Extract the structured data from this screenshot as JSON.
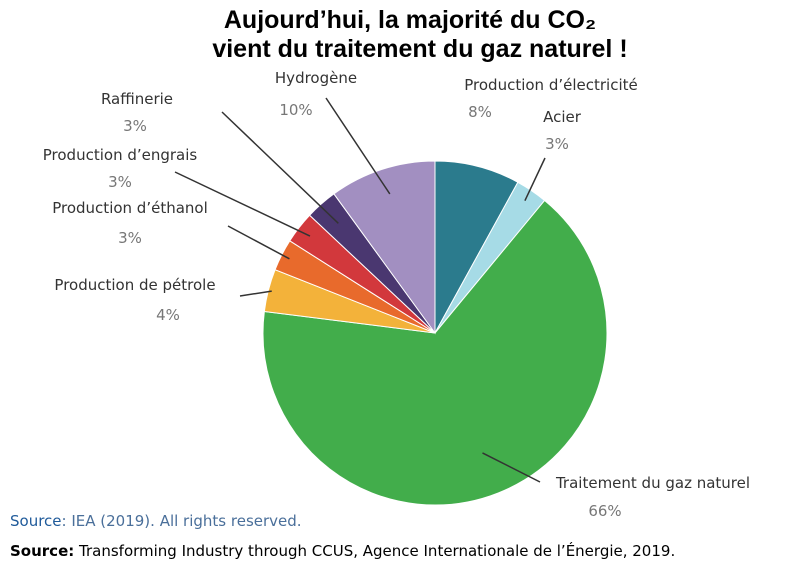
{
  "chart_data": {
    "type": "pie",
    "title": [
      "Aujourd’hui, la majorité du CO₂",
      "vient du traitement du gaz naturel !"
    ],
    "categories": [
      "Production d’électricité",
      "Acier",
      "Traitement du gaz naturel",
      "Production de pétrole",
      "Production d’éthanol",
      "Production d’engrais",
      "Raffinerie",
      "Hydrogène"
    ],
    "values": [
      8,
      3,
      66,
      4,
      3,
      3,
      3,
      10
    ],
    "value_labels": [
      "8%",
      "3%",
      "66%",
      "4%",
      "3%",
      "3%",
      "3%",
      "10%"
    ],
    "colors": [
      "#2b7b8d",
      "#a6dbe6",
      "#42ad4b",
      "#f3b23a",
      "#e86a2c",
      "#d2383c",
      "#4a3770",
      "#a28fc1"
    ],
    "sources": [
      {
        "label": "Source",
        "text": ": IEA (2019). All rights reserved."
      },
      {
        "label": "Source:",
        "text": " Transforming Industry through CCUS, Agence Internationale de l’Énergie, 2019."
      }
    ]
  }
}
